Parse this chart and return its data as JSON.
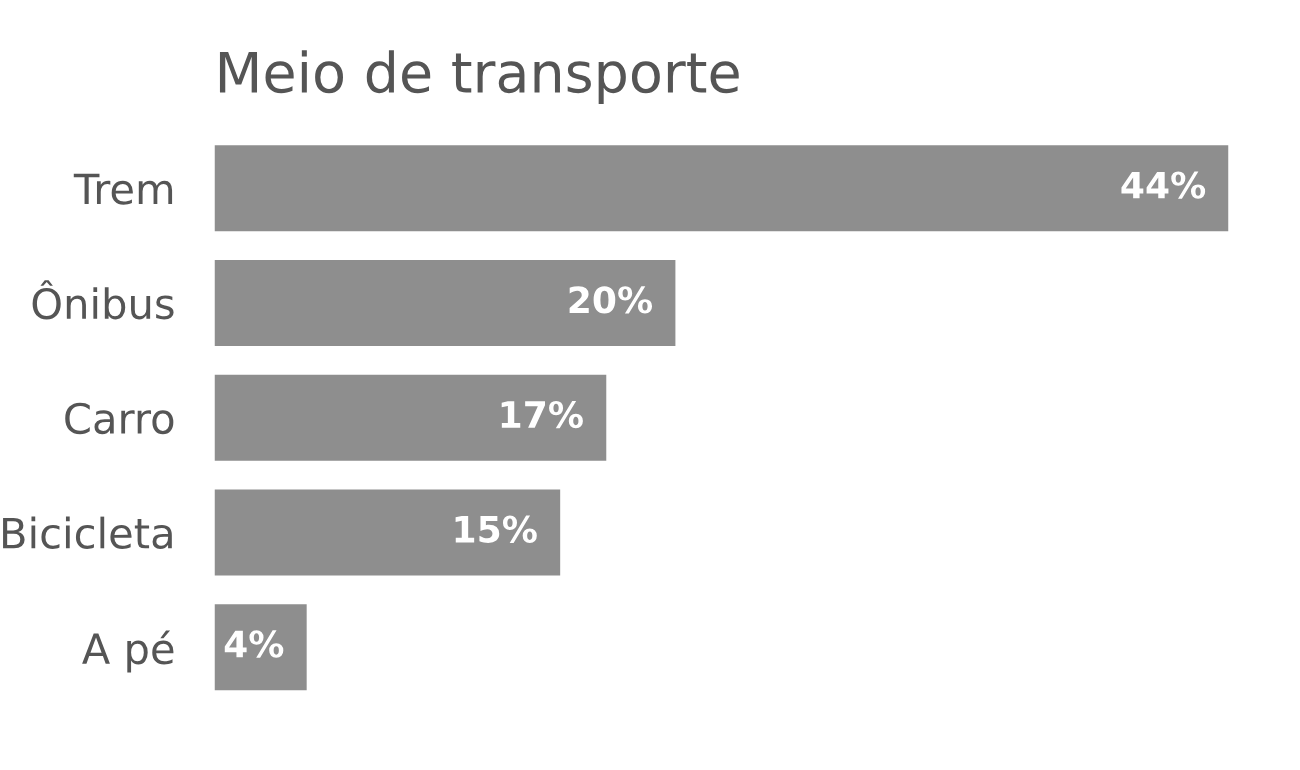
{
  "chart_data": {
    "type": "bar",
    "orientation": "horizontal",
    "title": "Meio de transporte",
    "categories": [
      "Trem",
      "Ônibus",
      "Carro",
      "Bicicleta",
      "A pé"
    ],
    "values": [
      44,
      20,
      17,
      15,
      4
    ],
    "value_labels": [
      "44%",
      "20%",
      "17%",
      "15%",
      "4%"
    ],
    "color": "#8e8e8e",
    "grid": false,
    "legend": false,
    "tick_labels": "y"
  }
}
